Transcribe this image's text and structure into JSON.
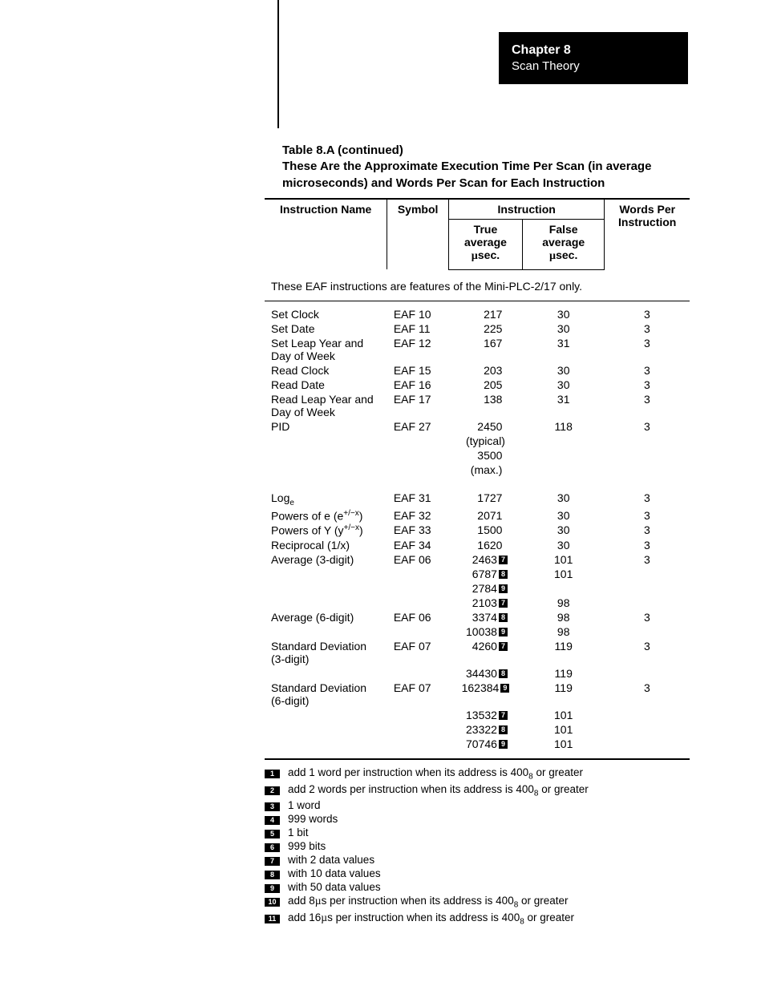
{
  "chapter": {
    "title": "Chapter 8",
    "subtitle": "Scan Theory"
  },
  "table": {
    "caption_line1": "Table 8.A (continued)",
    "caption_line2": "These Are the Approximate Execution Time Per Scan (in average microseconds) and Words Per Scan for Each Instruction",
    "headers": {
      "name": "Instruction Name",
      "symbol": "Symbol",
      "instruction": "Instruction",
      "true": "True average µsec.",
      "false": "False average µsec.",
      "words": "Words Per Instruction"
    },
    "note_row": "These EAF instructions are features of the Mini-PLC-2/17 only.",
    "footnotes": [
      {
        "n": "1",
        "text": "add 1 word per instruction when its address is 400₈ or greater"
      },
      {
        "n": "2",
        "text": "add 2 words per instruction when its address is 400₈ or greater"
      },
      {
        "n": "3",
        "text": "1 word"
      },
      {
        "n": "4",
        "text": "999 words"
      },
      {
        "n": "5",
        "text": "1 bit"
      },
      {
        "n": "6",
        "text": "999 bits"
      },
      {
        "n": "7",
        "text": "with 2 data values"
      },
      {
        "n": "8",
        "text": "with 10 data values"
      },
      {
        "n": "9",
        "text": "with 50 data values"
      },
      {
        "n": "10",
        "text": "add 8µs per instruction when its address is 400₈ or greater"
      },
      {
        "n": "11",
        "text": "add 16µs per instruction when its address is 400₈ or greater"
      }
    ],
    "rows": [
      {
        "name": "Set Clock",
        "symbol": "EAF 10",
        "true": [
          {
            "v": "217"
          }
        ],
        "false": [
          "30"
        ],
        "words": "3"
      },
      {
        "name": "Set Date",
        "symbol": "EAF 11",
        "true": [
          {
            "v": "225"
          }
        ],
        "false": [
          "30"
        ],
        "words": "3"
      },
      {
        "name": "Set Leap Year and Day of Week",
        "symbol": "EAF 12",
        "true": [
          {
            "v": "167"
          }
        ],
        "false": [
          "31"
        ],
        "words": "3"
      },
      {
        "name": "Read Clock",
        "symbol": "EAF 15",
        "true": [
          {
            "v": "203"
          }
        ],
        "false": [
          "30"
        ],
        "words": "3"
      },
      {
        "name": "Read Date",
        "symbol": "EAF 16",
        "true": [
          {
            "v": "205"
          }
        ],
        "false": [
          "30"
        ],
        "words": "3"
      },
      {
        "name": "Read Leap Year and Day of Week",
        "symbol": "EAF 17",
        "true": [
          {
            "v": "138"
          }
        ],
        "false": [
          "31"
        ],
        "words": "3"
      },
      {
        "name": "PID",
        "symbol": "EAF 27",
        "true": [
          {
            "v": "2450"
          },
          {
            "v": "(typical)"
          },
          {
            "v": "3500"
          },
          {
            "v": "(max.)"
          }
        ],
        "false": [
          "118"
        ],
        "words": "3"
      },
      {
        "gap": true,
        "name": "Logₑ",
        "name_html": "Log<sub>e</sub>",
        "symbol": "EAF 31",
        "true": [
          {
            "v": "1727"
          }
        ],
        "false": [
          "30"
        ],
        "words": "3"
      },
      {
        "name": "Powers of e (e⁺/⁻ˣ)",
        "name_html": "Powers of e (e<sup>+/−x</sup>)",
        "symbol": "EAF 32",
        "true": [
          {
            "v": "2071"
          }
        ],
        "false": [
          "30"
        ],
        "words": "3"
      },
      {
        "name": "Powers of Y (y⁺/⁻ˣ)",
        "name_html": "Powers of Y (y<sup>+/−x</sup>)",
        "symbol": "EAF 33",
        "true": [
          {
            "v": "1500"
          }
        ],
        "false": [
          "30"
        ],
        "words": "3"
      },
      {
        "name": "Reciprocal (1/x)",
        "symbol": "EAF 34",
        "true": [
          {
            "v": "1620"
          }
        ],
        "false": [
          "30"
        ],
        "words": "3"
      },
      {
        "name": "Average (3-digit)",
        "symbol": "EAF 06",
        "true": [
          {
            "v": "2463",
            "n": "7"
          },
          {
            "v": "6787",
            "n": "8"
          },
          {
            "v": "2784",
            "n": "9"
          },
          {
            "v": "2103",
            "n": "7"
          }
        ],
        "false": [
          "101",
          "101",
          "",
          "98"
        ],
        "words": "3"
      },
      {
        "name": "Average (6-digit)",
        "symbol": "EAF 06",
        "true": [
          {
            "v": "3374",
            "n": "8"
          },
          {
            "v": "10038",
            "n": "9"
          }
        ],
        "false": [
          "98",
          "98"
        ],
        "words": "3"
      },
      {
        "name": "Standard Deviation (3-digit)",
        "symbol": "EAF 07",
        "true": [
          {
            "v": "4260",
            "n": "7"
          },
          {
            "v": "34430",
            "n": "8"
          }
        ],
        "false": [
          "119",
          "119"
        ],
        "words": "3"
      },
      {
        "name": "Standard Deviation (6-digit)",
        "symbol": "EAF 07",
        "true": [
          {
            "v": "162384",
            "n": "9"
          },
          {
            "v": "13532",
            "n": "7"
          },
          {
            "v": "23322",
            "n": "8"
          },
          {
            "v": "70746",
            "n": "9"
          }
        ],
        "false": [
          "119",
          "101",
          "101",
          "101"
        ],
        "words": "3"
      }
    ]
  }
}
